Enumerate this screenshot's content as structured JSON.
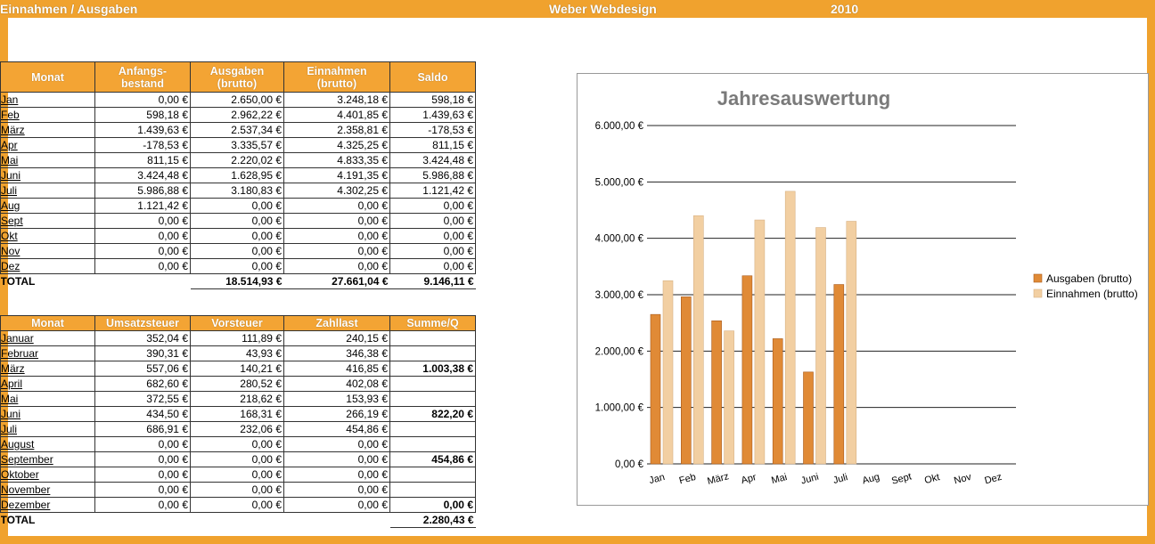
{
  "header": {
    "left": "Einnahmen / Ausgaben",
    "center": "Weber Webdesign",
    "year": "2010"
  },
  "table1": {
    "columns": [
      "Monat",
      "Anfangs-\nbestand",
      "Ausgaben\n(brutto)",
      "Einnahmen\n(brutto)",
      "Saldo"
    ],
    "rows": [
      {
        "m": "Jan",
        "a": "0,00 €",
        "b": "2.650,00 €",
        "c": "3.248,18 €",
        "d": "598,18 €"
      },
      {
        "m": "Feb",
        "a": "598,18 €",
        "b": "2.962,22 €",
        "c": "4.401,85 €",
        "d": "1.439,63 €"
      },
      {
        "m": "März",
        "a": "1.439,63 €",
        "b": "2.537,34 €",
        "c": "2.358,81 €",
        "d": "-178,53 €"
      },
      {
        "m": "Apr",
        "a": "-178,53 €",
        "b": "3.335,57 €",
        "c": "4.325,25 €",
        "d": "811,15 €"
      },
      {
        "m": "Mai",
        "a": "811,15 €",
        "b": "2.220,02 €",
        "c": "4.833,35 €",
        "d": "3.424,48 €"
      },
      {
        "m": "Juni",
        "a": "3.424,48 €",
        "b": "1.628,95 €",
        "c": "4.191,35 €",
        "d": "5.986,88 €"
      },
      {
        "m": "Juli",
        "a": "5.986,88 €",
        "b": "3.180,83 €",
        "c": "4.302,25 €",
        "d": "1.121,42 €"
      },
      {
        "m": "Aug",
        "a": "1.121,42 €",
        "b": "0,00 €",
        "c": "0,00 €",
        "d": "0,00 €"
      },
      {
        "m": "Sept",
        "a": "0,00 €",
        "b": "0,00 €",
        "c": "0,00 €",
        "d": "0,00 €"
      },
      {
        "m": "Okt",
        "a": "0,00 €",
        "b": "0,00 €",
        "c": "0,00 €",
        "d": "0,00 €"
      },
      {
        "m": "Nov",
        "a": "0,00 €",
        "b": "0,00 €",
        "c": "0,00 €",
        "d": "0,00 €"
      },
      {
        "m": "Dez",
        "a": "0,00 €",
        "b": "0,00 €",
        "c": "0,00 €",
        "d": "0,00 €"
      }
    ],
    "total": {
      "label": "TOTAL",
      "b": "18.514,93 €",
      "c": "27.661,04 €",
      "d": "9.146,11 €"
    }
  },
  "table2": {
    "columns": [
      "Monat",
      "Umsatzsteuer",
      "Vorsteuer",
      "Zahllast",
      "Summe/Q"
    ],
    "rows": [
      {
        "m": "Januar",
        "a": "352,04 €",
        "b": "111,89 €",
        "c": "240,15 €",
        "d": ""
      },
      {
        "m": "Februar",
        "a": "390,31 €",
        "b": "43,93 €",
        "c": "346,38 €",
        "d": ""
      },
      {
        "m": "März",
        "a": "557,06 €",
        "b": "140,21 €",
        "c": "416,85 €",
        "d": "1.003,38 €"
      },
      {
        "m": "April",
        "a": "682,60 €",
        "b": "280,52 €",
        "c": "402,08 €",
        "d": ""
      },
      {
        "m": "Mai",
        "a": "372,55 €",
        "b": "218,62 €",
        "c": "153,93 €",
        "d": ""
      },
      {
        "m": "Juni",
        "a": "434,50 €",
        "b": "168,31 €",
        "c": "266,19 €",
        "d": "822,20 €"
      },
      {
        "m": "Juli",
        "a": "686,91 €",
        "b": "232,06 €",
        "c": "454,86 €",
        "d": ""
      },
      {
        "m": "August",
        "a": "0,00 €",
        "b": "0,00 €",
        "c": "0,00 €",
        "d": ""
      },
      {
        "m": "September",
        "a": "0,00 €",
        "b": "0,00 €",
        "c": "0,00 €",
        "d": "454,86 €"
      },
      {
        "m": "Oktober",
        "a": "0,00 €",
        "b": "0,00 €",
        "c": "0,00 €",
        "d": ""
      },
      {
        "m": "November",
        "a": "0,00 €",
        "b": "0,00 €",
        "c": "0,00 €",
        "d": ""
      },
      {
        "m": "Dezember",
        "a": "0,00 €",
        "b": "0,00 €",
        "c": "0,00 €",
        "d": "0,00 €"
      }
    ],
    "total": {
      "label": "TOTAL",
      "d": "2.280,43 €"
    }
  },
  "colors": {
    "frame": "#f0a22e",
    "header_fill": "#f3a434",
    "ausgaben": "#e08a36",
    "einnahmen": "#f2cfa2"
  },
  "chart_data": {
    "type": "bar",
    "title": "Jahresauswertung",
    "categories": [
      "Jan",
      "Feb",
      "März",
      "Apr",
      "Mai",
      "Juni",
      "Juli",
      "Aug",
      "Sept",
      "Okt",
      "Nov",
      "Dez"
    ],
    "series": [
      {
        "name": "Ausgaben  (brutto)",
        "values": [
          2650.0,
          2962.22,
          2537.34,
          3335.57,
          2220.02,
          1628.95,
          3180.83,
          0,
          0,
          0,
          0,
          0
        ]
      },
      {
        "name": "Einnahmen  (brutto)",
        "values": [
          3248.18,
          4401.85,
          2358.81,
          4325.25,
          4833.35,
          4191.35,
          4302.25,
          0,
          0,
          0,
          0,
          0
        ]
      }
    ],
    "ylim": [
      0,
      6000
    ],
    "yticks": [
      "0,00 €",
      "1.000,00 €",
      "2.000,00 €",
      "3.000,00 €",
      "4.000,00 €",
      "5.000,00 €",
      "6.000,00 €"
    ],
    "grid": true,
    "legend": "right"
  }
}
